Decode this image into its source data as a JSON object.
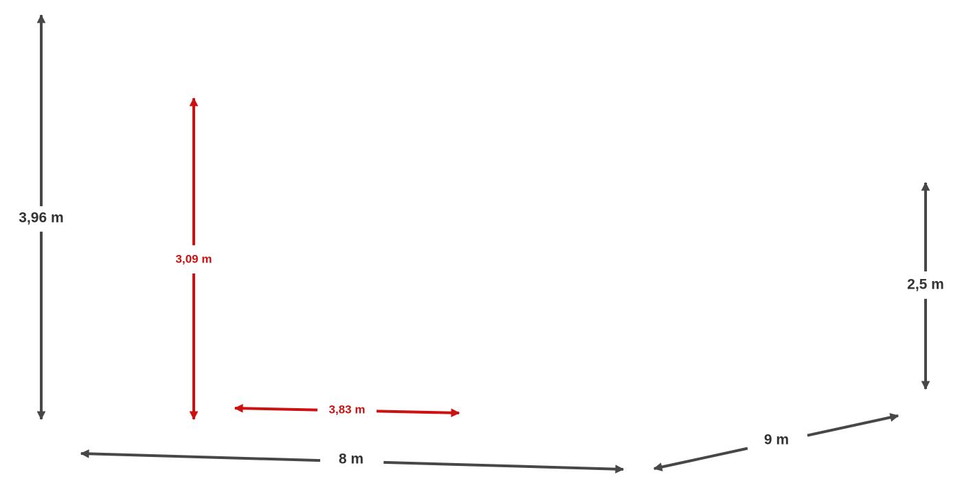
{
  "dimensions": [
    {
      "label": "3,96 m"
    },
    {
      "label": "3,09 m"
    },
    {
      "label": "3,83 m"
    },
    {
      "label": "2,5 m"
    },
    {
      "label": "8 m"
    },
    {
      "label": "9 m"
    }
  ]
}
